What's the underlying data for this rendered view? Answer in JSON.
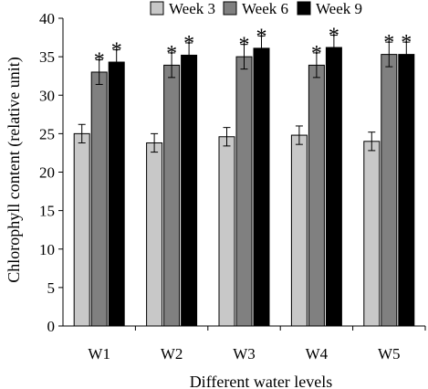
{
  "chart_data": {
    "type": "bar",
    "categories": [
      "W1",
      "W2",
      "W3",
      "W4",
      "W5"
    ],
    "series": [
      {
        "name": "Week 3",
        "color": "#c8c8c8",
        "values": [
          25.0,
          23.8,
          24.6,
          24.8,
          24.0
        ],
        "errors": [
          1.2,
          1.2,
          1.2,
          1.2,
          1.2
        ],
        "stars": [
          false,
          false,
          false,
          false,
          false
        ]
      },
      {
        "name": "Week 6",
        "color": "#808080",
        "values": [
          33.0,
          33.9,
          35.0,
          33.9,
          35.3
        ],
        "errors": [
          1.6,
          1.6,
          1.6,
          1.6,
          1.6
        ],
        "stars": [
          true,
          true,
          true,
          true,
          true
        ]
      },
      {
        "name": "Week 9",
        "color": "#000000",
        "values": [
          34.3,
          35.2,
          36.1,
          36.2,
          35.3
        ],
        "errors": [
          1.6,
          1.6,
          1.6,
          1.6,
          1.6
        ],
        "stars": [
          true,
          true,
          true,
          true,
          true
        ]
      }
    ],
    "ylim": [
      0,
      40
    ],
    "yticks": [
      0,
      5,
      10,
      15,
      20,
      25,
      30,
      35,
      40
    ],
    "xlabel": "Different water levels",
    "ylabel": "Chlorophyll content (relative unit)",
    "significance_marker": "*",
    "legend_position": "top",
    "grid": false
  }
}
